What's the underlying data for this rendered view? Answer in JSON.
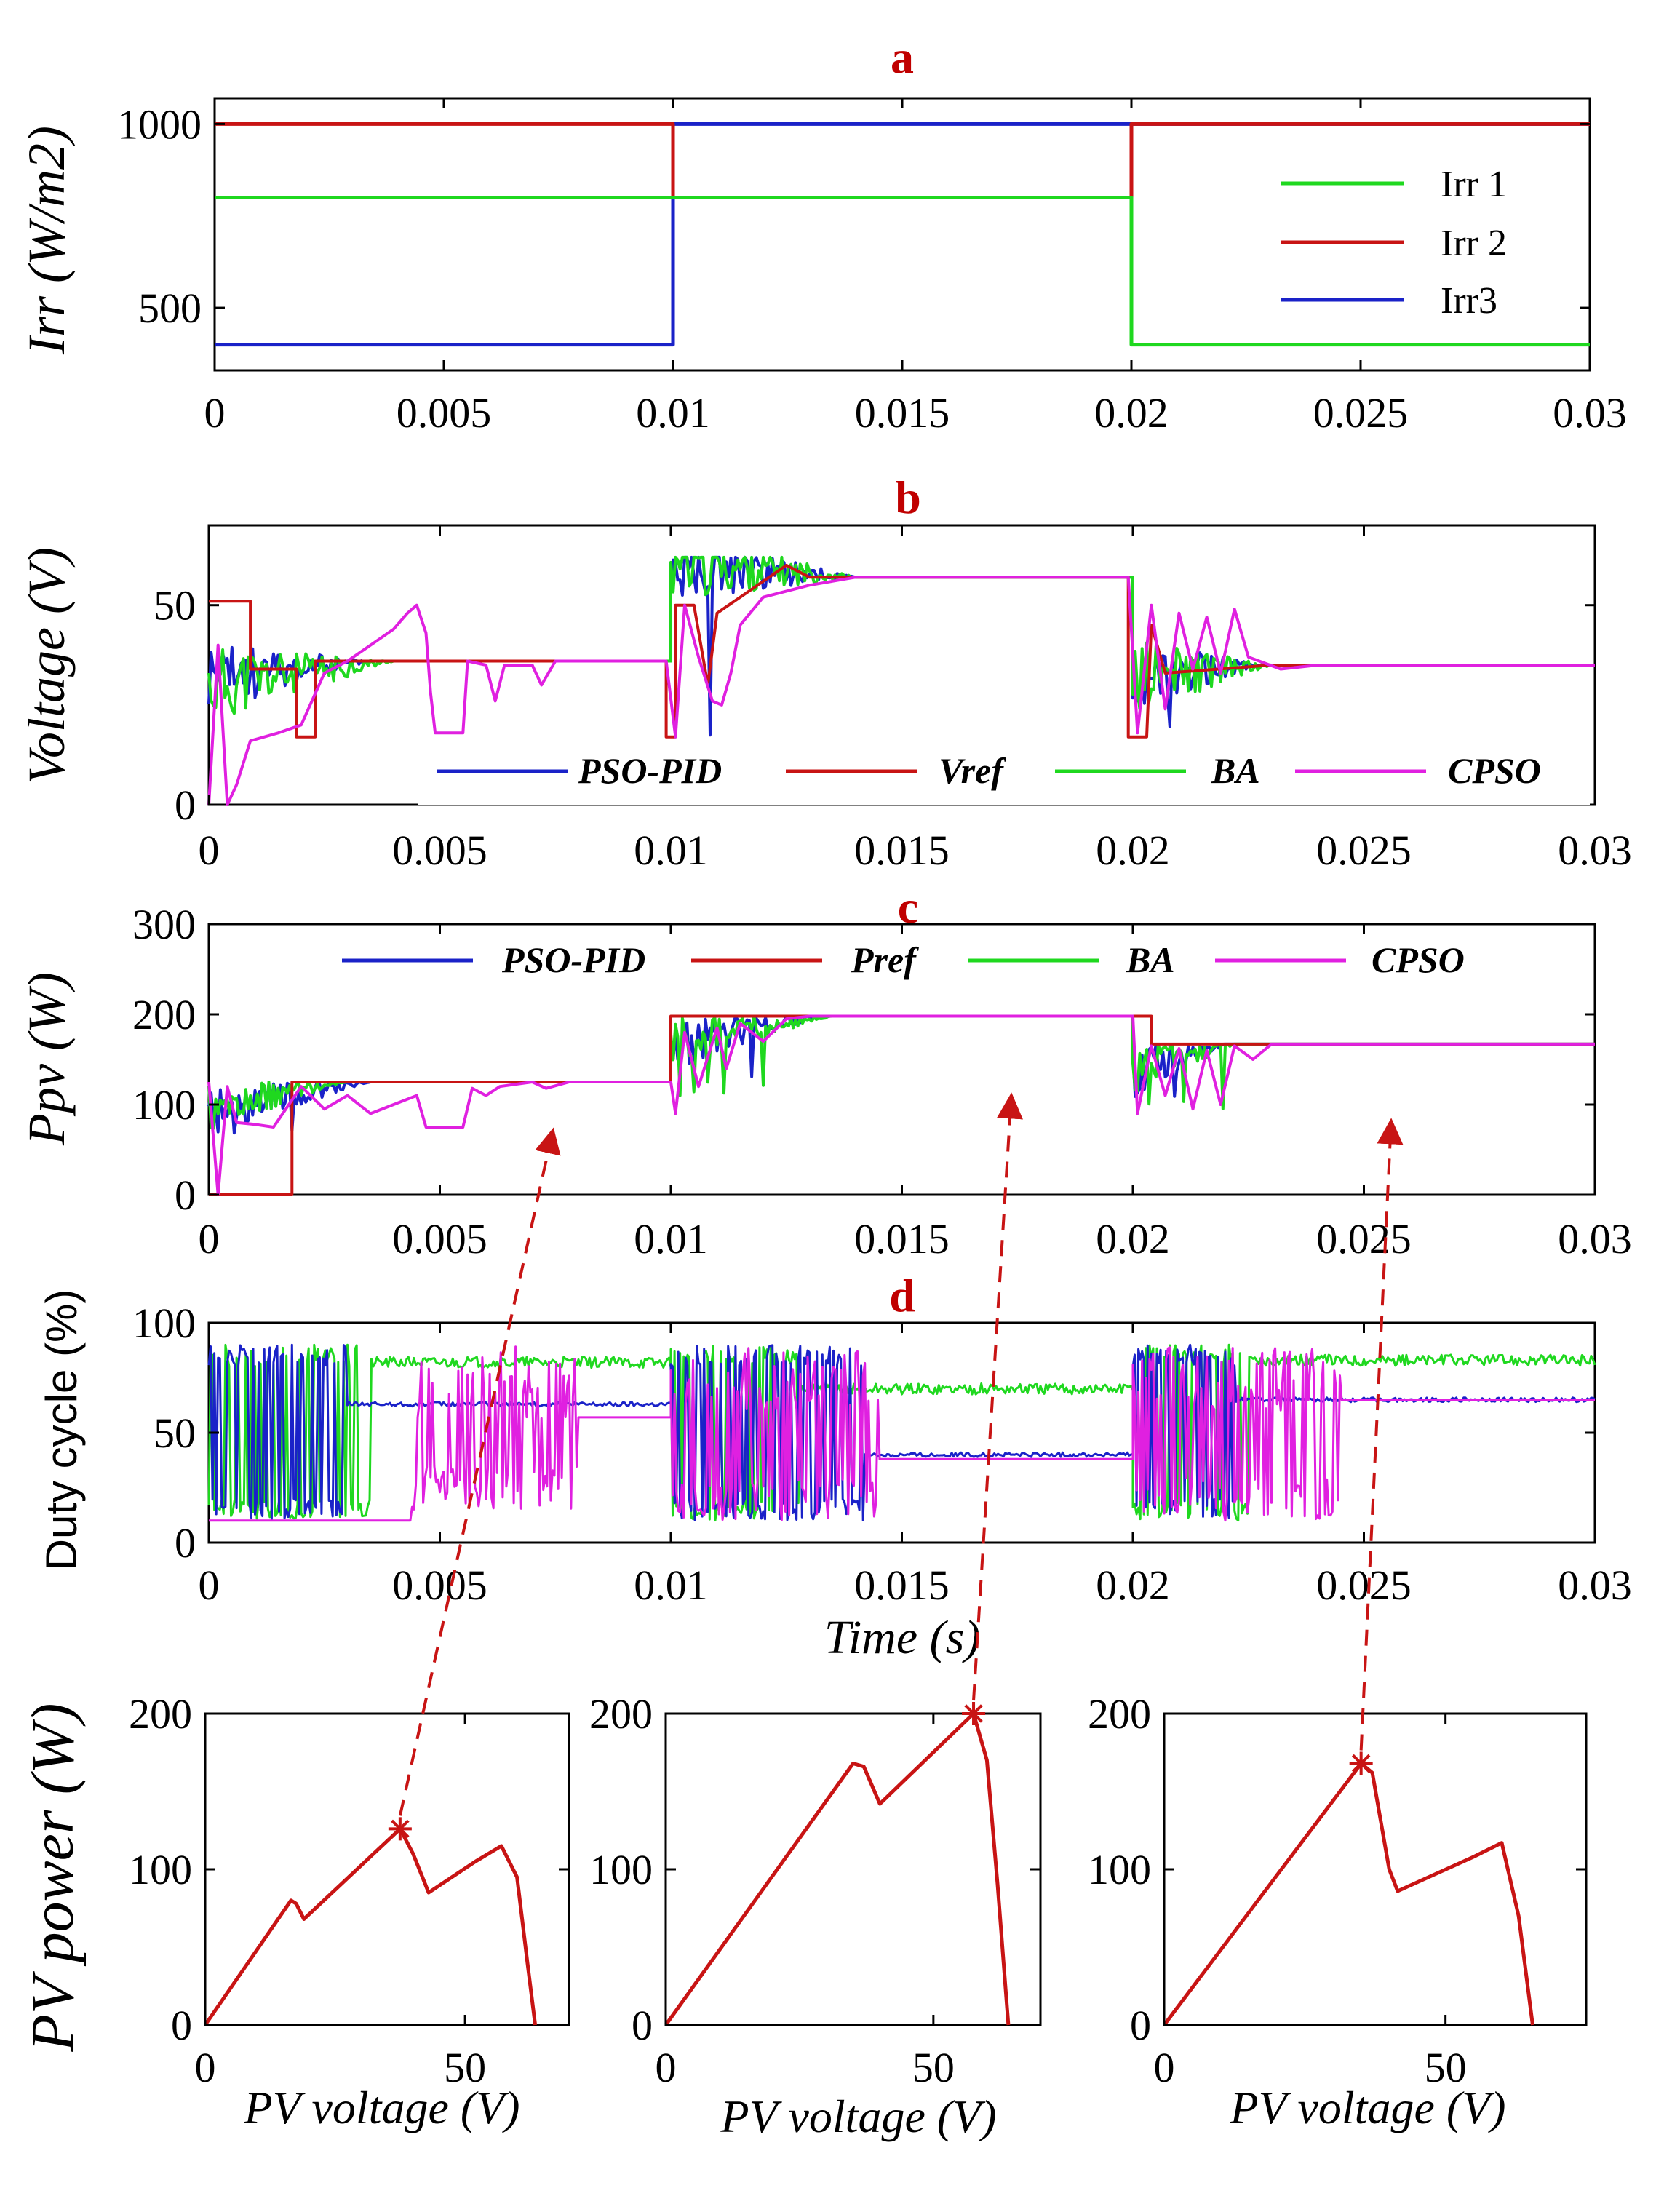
{
  "colors": {
    "green": "#1fd81f",
    "red": "#c81414",
    "blue": "#1a22c8",
    "magenta": "#e020e0",
    "arrow": "#c81414"
  },
  "chart_data": [
    {
      "id": "a",
      "type": "line",
      "panel_label": "a",
      "ylabel": "Irr (W/m2)",
      "xlim": [
        0,
        0.03
      ],
      "ylim": [
        330,
        1070
      ],
      "xticks": [
        "0",
        "0.005",
        "0.01",
        "0.015",
        "0.02",
        "0.025",
        "0.03"
      ],
      "yticks": [
        "500",
        "1000"
      ],
      "legend": [
        "Irr 1",
        "Irr 2",
        "Irr3"
      ],
      "series": [
        {
          "name": "Irr 1",
          "color": "green",
          "x": [
            0,
            0.02,
            0.02,
            0.03
          ],
          "y": [
            800,
            800,
            400,
            400
          ]
        },
        {
          "name": "Irr 2",
          "color": "red",
          "x": [
            0,
            0.01,
            0.01,
            0.02,
            0.02,
            0.03
          ],
          "y": [
            1000,
            1000,
            800,
            800,
            1000,
            1000
          ]
        },
        {
          "name": "Irr3",
          "color": "blue",
          "x": [
            0,
            0.01,
            0.01,
            0.03
          ],
          "y": [
            400,
            400,
            1000,
            1000
          ]
        }
      ]
    },
    {
      "id": "b",
      "type": "line",
      "panel_label": "b",
      "ylabel": "Voltage (V)",
      "xlim": [
        0,
        0.03
      ],
      "ylim": [
        0,
        70
      ],
      "xticks": [
        "0",
        "0.005",
        "0.01",
        "0.015",
        "0.02",
        "0.025",
        "0.03"
      ],
      "yticks": [
        "0",
        "50"
      ],
      "legend": [
        "PSO-PID",
        "Vref",
        "BA",
        "CPSO"
      ],
      "series": [
        {
          "name": "PSO-PID",
          "color": "blue"
        },
        {
          "name": "Vref",
          "color": "red"
        },
        {
          "name": "BA",
          "color": "green"
        },
        {
          "name": "CPSO",
          "color": "magenta"
        }
      ],
      "steady_state_voltage": [
        36,
        57,
        35
      ]
    },
    {
      "id": "c",
      "type": "line",
      "panel_label": "c",
      "ylabel": "Ppv (W)",
      "xlim": [
        0,
        0.03
      ],
      "ylim": [
        0,
        300
      ],
      "xticks": [
        "0",
        "0.005",
        "0.01",
        "0.015",
        "0.02",
        "0.025",
        "0.03"
      ],
      "yticks": [
        "0",
        "100",
        "200",
        "300"
      ],
      "legend": [
        "PSO-PID",
        "Pref",
        "BA",
        "CPSO"
      ],
      "series": [
        {
          "name": "PSO-PID",
          "color": "blue"
        },
        {
          "name": "Pref",
          "color": "red"
        },
        {
          "name": "BA",
          "color": "green"
        },
        {
          "name": "CPSO",
          "color": "magenta"
        }
      ],
      "steady_state_power": [
        125,
        198,
        167
      ]
    },
    {
      "id": "d",
      "type": "line",
      "panel_label": "d",
      "ylabel": "Duty cycle (%)",
      "xlabel": "Time (s)",
      "xlim": [
        0,
        0.03
      ],
      "ylim": [
        0,
        100
      ],
      "xticks": [
        "0",
        "0.005",
        "0.01",
        "0.015",
        "0.02",
        "0.025",
        "0.03"
      ],
      "yticks": [
        "0",
        "50",
        "100"
      ],
      "series": [
        {
          "name": "PSO-PID",
          "color": "blue"
        },
        {
          "name": "BA",
          "color": "green"
        },
        {
          "name": "CPSO",
          "color": "magenta"
        }
      ],
      "steady_state_duty": {
        "BA": [
          82,
          70,
          83
        ],
        "PSO-PID": [
          63,
          40,
          65
        ],
        "CPSO": [
          57,
          38,
          65
        ]
      }
    },
    {
      "id": "pv1",
      "type": "line",
      "ylabel": "PV power (W)",
      "xlabel": "PV voltage (V)",
      "xlim": [
        0,
        70
      ],
      "ylim": [
        0,
        200
      ],
      "xticks": [
        "0",
        "50"
      ],
      "yticks": [
        "0",
        "100",
        "200"
      ],
      "series": [
        {
          "name": "P-V curve",
          "color": "red",
          "x": [
            0,
            16.5,
            17.5,
            19,
            37.5,
            40,
            43,
            52,
            57,
            60,
            62,
            63.5
          ],
          "y": [
            0,
            80,
            78,
            68,
            126,
            110,
            85,
            105,
            115,
            95,
            40,
            0
          ]
        }
      ],
      "mpp": {
        "x": 37.5,
        "y": 126
      }
    },
    {
      "id": "pv2",
      "type": "line",
      "xlabel": "PV voltage (V)",
      "xlim": [
        0,
        70
      ],
      "ylim": [
        0,
        200
      ],
      "xticks": [
        "0",
        "50"
      ],
      "yticks": [
        "0",
        "100",
        "200"
      ],
      "series": [
        {
          "name": "P-V curve",
          "color": "red",
          "x": [
            0,
            35,
            37,
            40,
            57.5,
            60,
            62,
            64
          ],
          "y": [
            0,
            168,
            166,
            142,
            200,
            170,
            90,
            0
          ]
        }
      ],
      "mpp": {
        "x": 57.5,
        "y": 200
      }
    },
    {
      "id": "pv3",
      "type": "line",
      "xlabel": "PV voltage (V)",
      "xlim": [
        0,
        75
      ],
      "ylim": [
        0,
        200
      ],
      "xticks": [
        "0",
        "50"
      ],
      "yticks": [
        "0",
        "100",
        "200"
      ],
      "series": [
        {
          "name": "P-V curve",
          "color": "red",
          "x": [
            0,
            35,
            37,
            40,
            41.5,
            55,
            60,
            63,
            65.5
          ],
          "y": [
            0,
            168,
            162,
            100,
            86,
            108,
            117,
            70,
            0
          ]
        }
      ],
      "mpp": {
        "x": 35,
        "y": 168
      }
    }
  ]
}
